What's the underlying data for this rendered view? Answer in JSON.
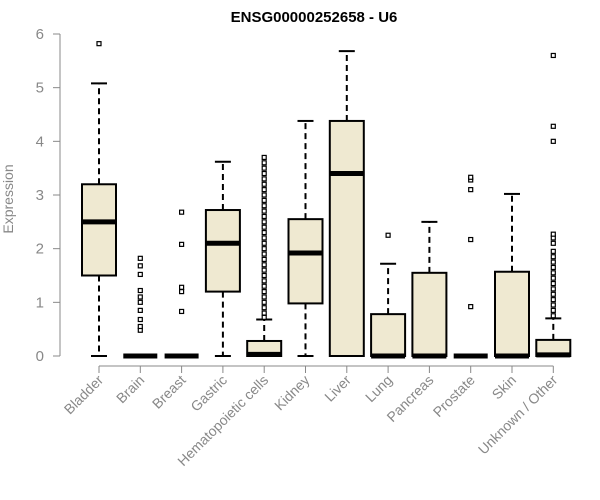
{
  "chart_data": {
    "type": "box",
    "title": "ENSG00000252658 - U6",
    "xlabel": "",
    "ylabel": "Expression",
    "ylim": [
      0,
      6
    ],
    "yticks": [
      "0",
      "1",
      "2",
      "3",
      "4",
      "5",
      "6"
    ],
    "grid": false,
    "box_fill": "#efe9d1",
    "categories": [
      "Bladder",
      "Brain",
      "Breast",
      "Gastric",
      "Hematopoietic cells",
      "Kidney",
      "Liver",
      "Lung",
      "Pancreas",
      "Prostate",
      "Skin",
      "Unknown / Other"
    ],
    "boxes": [
      {
        "whisker_low": 0,
        "q1": 1.5,
        "median": 2.5,
        "q3": 3.2,
        "whisker_high": 5.08,
        "outliers": [
          5.82
        ]
      },
      {
        "whisker_low": 0,
        "q1": 0,
        "median": 0,
        "q3": 0,
        "whisker_high": 0,
        "outliers": [
          0.48,
          0.55,
          0.68,
          0.85,
          1.0,
          1.1,
          1.22,
          1.52,
          1.68,
          1.82
        ]
      },
      {
        "whisker_low": 0,
        "q1": 0,
        "median": 0,
        "q3": 0,
        "whisker_high": 0,
        "outliers": [
          0.83,
          1.2,
          1.28,
          2.08,
          2.68
        ]
      },
      {
        "whisker_low": 0,
        "q1": 1.2,
        "median": 2.1,
        "q3": 2.72,
        "whisker_high": 3.62,
        "outliers": []
      },
      {
        "whisker_low": 0,
        "q1": 0,
        "median": 0.03,
        "q3": 0.28,
        "whisker_high": 0.68,
        "outliers": [
          0.72,
          0.8,
          0.9,
          1.0,
          1.1,
          1.2,
          1.3,
          1.4,
          1.5,
          1.6,
          1.7,
          1.8,
          1.9,
          2.0,
          2.1,
          2.2,
          2.3,
          2.4,
          2.5,
          2.6,
          2.7,
          2.8,
          2.9,
          3.0,
          3.1,
          3.2,
          3.3,
          3.4,
          3.5,
          3.6,
          3.7
        ]
      },
      {
        "whisker_low": 0,
        "q1": 0.98,
        "median": 1.92,
        "q3": 2.55,
        "whisker_high": 4.38,
        "outliers": []
      },
      {
        "whisker_low": 0,
        "q1": 0,
        "median": 3.4,
        "q3": 4.38,
        "whisker_high": 5.68,
        "outliers": []
      },
      {
        "whisker_low": 0,
        "q1": 0,
        "median": 0,
        "q3": 0.78,
        "whisker_high": 1.72,
        "outliers": [
          2.25
        ]
      },
      {
        "whisker_low": 0,
        "q1": 0,
        "median": 0,
        "q3": 1.55,
        "whisker_high": 2.5,
        "outliers": []
      },
      {
        "whisker_low": 0,
        "q1": 0,
        "median": 0,
        "q3": 0,
        "whisker_high": 0,
        "outliers": [
          0.92,
          2.17,
          3.1,
          3.28,
          3.33
        ]
      },
      {
        "whisker_low": 0,
        "q1": 0,
        "median": 0,
        "q3": 1.57,
        "whisker_high": 3.02,
        "outliers": []
      },
      {
        "whisker_low": 0,
        "q1": 0,
        "median": 0.02,
        "q3": 0.3,
        "whisker_high": 0.7,
        "outliers": [
          0.75,
          0.85,
          0.95,
          1.05,
          1.15,
          1.25,
          1.35,
          1.45,
          1.55,
          1.65,
          1.75,
          1.85,
          1.95,
          2.1,
          2.2,
          2.27,
          4.0,
          4.28,
          5.6
        ]
      }
    ]
  }
}
